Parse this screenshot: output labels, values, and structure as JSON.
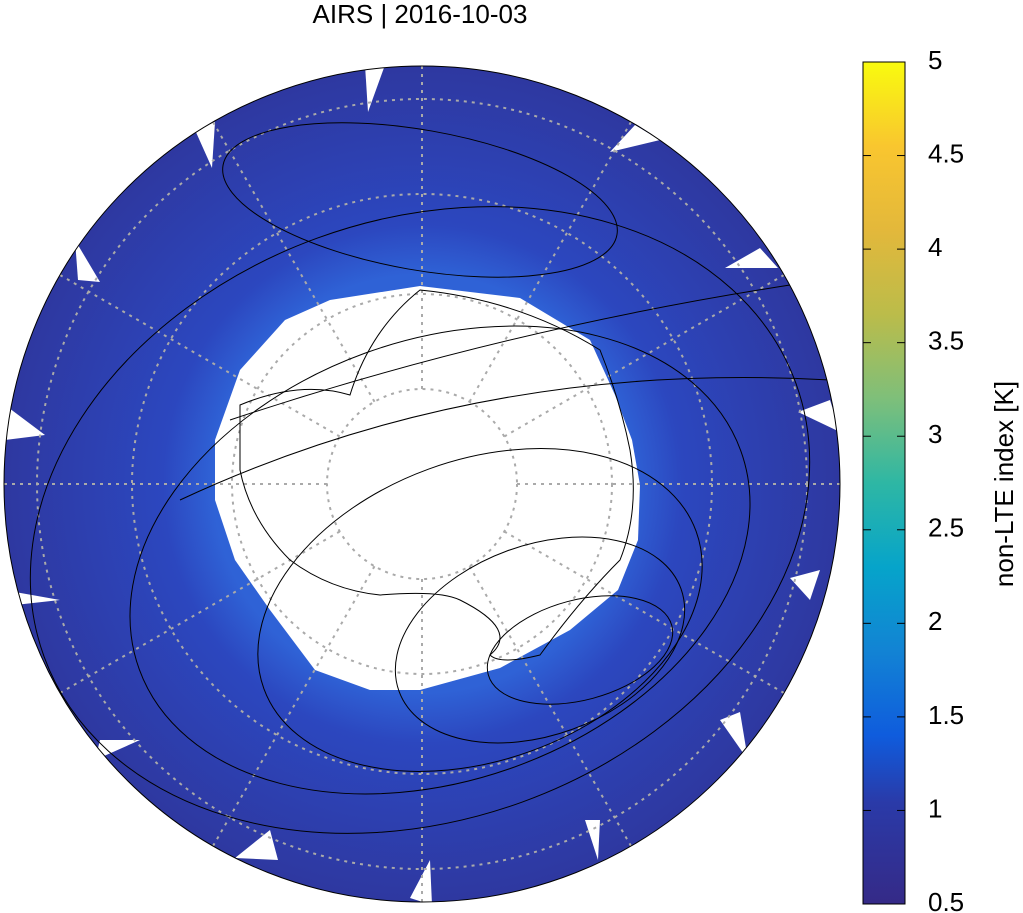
{
  "chart_data": {
    "type": "map",
    "title": "AIRS | 2016-10-03",
    "colorbar": {
      "label": "non-LTE index [K]",
      "lim": [
        0.5,
        5
      ],
      "ticks": [
        0.5,
        1,
        1.5,
        2,
        2.5,
        3,
        3.5,
        4,
        4.5,
        5
      ]
    }
  }
}
